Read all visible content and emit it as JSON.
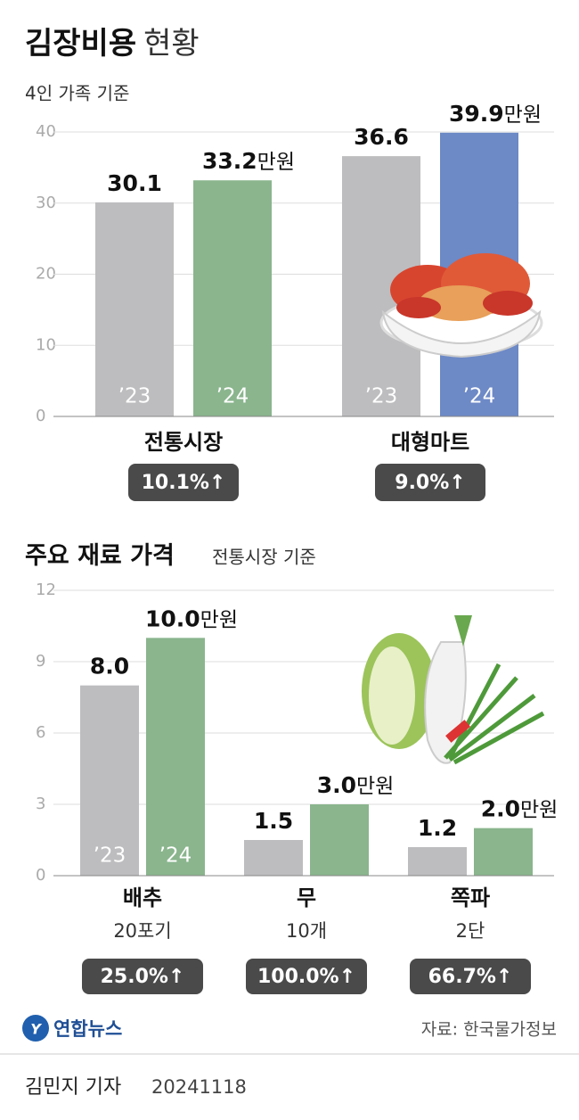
{
  "chart_data": [
    {
      "type": "bar",
      "title": "김장비용",
      "title_suffix": "현황",
      "subtitle": "4인 가족 기준",
      "categories": [
        "전통시장",
        "대형마트"
      ],
      "series": [
        {
          "name": "’23",
          "color": "#bdbdbf",
          "values": [
            30.1,
            36.6
          ]
        },
        {
          "name": "’24",
          "colors": [
            "#8ab58d",
            "#6d89c6"
          ],
          "values": [
            33.2,
            39.9
          ],
          "unit": "만원"
        }
      ],
      "changes": [
        "10.1%↑",
        "9.0%↑"
      ],
      "ylim": [
        0,
        40
      ],
      "yticks": [
        0,
        10,
        20,
        30,
        40
      ],
      "grid": true
    },
    {
      "type": "bar",
      "title": "주요 재료 가격",
      "subtitle": "전통시장 기준",
      "categories": [
        "배추",
        "무",
        "쪽파"
      ],
      "category_notes": [
        "20포기",
        "10개",
        "2단"
      ],
      "series": [
        {
          "name": "’23",
          "color": "#bdbdbf",
          "values": [
            8.0,
            1.5,
            1.2
          ],
          "value_labels": [
            "8.0",
            "1.5",
            "1.2"
          ]
        },
        {
          "name": "’24",
          "color": "#8ab58d",
          "values": [
            10.0,
            3.0,
            2.0
          ],
          "value_labels": [
            "10.0",
            "3.0",
            "2.0"
          ],
          "unit": "만원"
        }
      ],
      "changes": [
        "25.0%↑",
        "100.0%↑",
        "66.7%↑"
      ],
      "ylim": [
        0,
        12
      ],
      "yticks": [
        0,
        3,
        6,
        9,
        12
      ],
      "grid": true
    }
  ],
  "logo": "연합뉴스",
  "source": "자료: 한국물가정보",
  "byline": "김민지 기자",
  "date": "20241118"
}
